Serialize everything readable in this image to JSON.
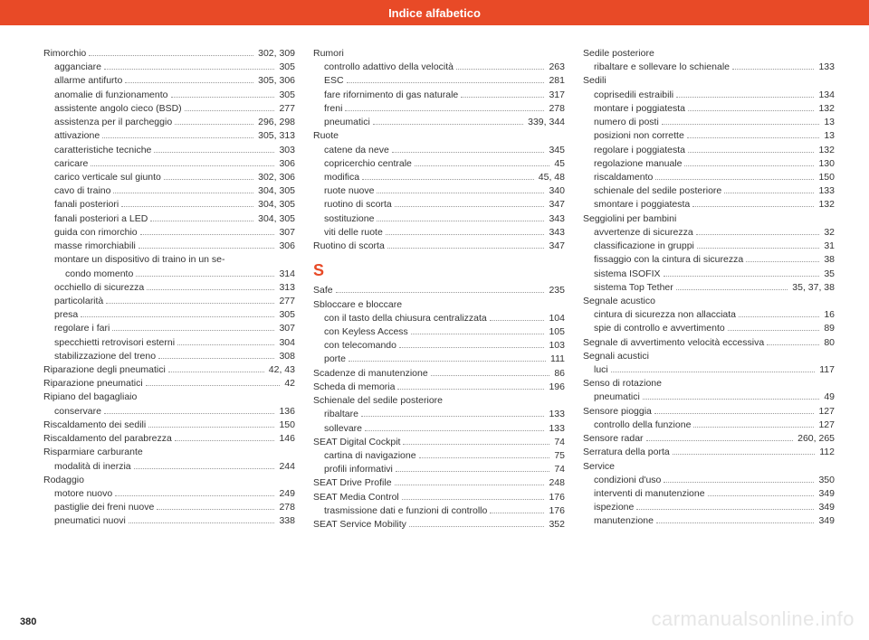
{
  "header": {
    "title": "Indice alfabetico"
  },
  "page_number": "380",
  "watermark": "carmanualsonline.info",
  "colors": {
    "accent": "#e84a27",
    "text": "#333333",
    "dots": "#999999",
    "watermark": "#e6e6e6",
    "bg": "#ffffff"
  },
  "columns": [
    {
      "items": [
        {
          "label": "Rimorchio",
          "pages": "302, 309",
          "level": 0
        },
        {
          "label": "agganciare",
          "pages": "305",
          "level": 1
        },
        {
          "label": "allarme antifurto",
          "pages": "305, 306",
          "level": 1
        },
        {
          "label": "anomalie di funzionamento",
          "pages": "305",
          "level": 1
        },
        {
          "label": "assistente angolo cieco (BSD)",
          "pages": "277",
          "level": 1
        },
        {
          "label": "assistenza per il parcheggio",
          "pages": "296, 298",
          "level": 1
        },
        {
          "label": "attivazione",
          "pages": "305, 313",
          "level": 1
        },
        {
          "label": "caratteristiche tecniche",
          "pages": "303",
          "level": 1
        },
        {
          "label": "caricare",
          "pages": "306",
          "level": 1
        },
        {
          "label": "carico verticale sul giunto",
          "pages": "302, 306",
          "level": 1
        },
        {
          "label": "cavo di traino",
          "pages": "304, 305",
          "level": 1
        },
        {
          "label": "fanali posteriori",
          "pages": "304, 305",
          "level": 1
        },
        {
          "label": "fanali posteriori a LED",
          "pages": "304, 305",
          "level": 1
        },
        {
          "label": "guida con rimorchio",
          "pages": "307",
          "level": 1
        },
        {
          "label": "masse rimorchiabili",
          "pages": "306",
          "level": 1
        },
        {
          "label": "montare un dispositivo di traino in un se-",
          "pages": "",
          "level": 1,
          "nodots": true
        },
        {
          "label": "condo momento",
          "pages": "314",
          "level": 2
        },
        {
          "label": "occhiello di sicurezza",
          "pages": "313",
          "level": 1
        },
        {
          "label": "particolarità",
          "pages": "277",
          "level": 1
        },
        {
          "label": "presa",
          "pages": "305",
          "level": 1
        },
        {
          "label": "regolare i fari",
          "pages": "307",
          "level": 1
        },
        {
          "label": "specchietti retrovisori esterni",
          "pages": "304",
          "level": 1
        },
        {
          "label": "stabilizzazione del treno",
          "pages": "308",
          "level": 1
        },
        {
          "label": "Riparazione degli pneumatici",
          "pages": "42, 43",
          "level": 0
        },
        {
          "label": "Riparazione pneumatici",
          "pages": "42",
          "level": 0
        },
        {
          "label": "Ripiano del bagagliaio",
          "pages": "",
          "level": 0,
          "nodots": true
        },
        {
          "label": "conservare",
          "pages": "136",
          "level": 1
        },
        {
          "label": "Riscaldamento dei sedili",
          "pages": "150",
          "level": 0
        },
        {
          "label": "Riscaldamento del parabrezza",
          "pages": "146",
          "level": 0
        },
        {
          "label": "Risparmiare carburante",
          "pages": "",
          "level": 0,
          "nodots": true
        },
        {
          "label": "modalità di inerzia",
          "pages": "244",
          "level": 1
        },
        {
          "label": "Rodaggio",
          "pages": "",
          "level": 0,
          "nodots": true
        },
        {
          "label": "motore nuovo",
          "pages": "249",
          "level": 1
        },
        {
          "label": "pastiglie dei freni nuove",
          "pages": "278",
          "level": 1
        },
        {
          "label": "pneumatici nuovi",
          "pages": "338",
          "level": 1
        }
      ]
    },
    {
      "items": [
        {
          "label": "Rumori",
          "pages": "",
          "level": 0,
          "nodots": true
        },
        {
          "label": "controllo adattivo della velocità",
          "pages": "263",
          "level": 1
        },
        {
          "label": "ESC",
          "pages": "281",
          "level": 1
        },
        {
          "label": "fare rifornimento di gas naturale",
          "pages": "317",
          "level": 1
        },
        {
          "label": "freni",
          "pages": "278",
          "level": 1
        },
        {
          "label": "pneumatici",
          "pages": "339, 344",
          "level": 1
        },
        {
          "label": "Ruote",
          "pages": "",
          "level": 0,
          "nodots": true
        },
        {
          "label": "catene da neve",
          "pages": "345",
          "level": 1
        },
        {
          "label": "copricerchio centrale",
          "pages": "45",
          "level": 1
        },
        {
          "label": "modifica",
          "pages": "45, 48",
          "level": 1
        },
        {
          "label": "ruote nuove",
          "pages": "340",
          "level": 1
        },
        {
          "label": "ruotino di scorta",
          "pages": "347",
          "level": 1
        },
        {
          "label": "sostituzione",
          "pages": "343",
          "level": 1
        },
        {
          "label": "viti delle ruote",
          "pages": "343",
          "level": 1
        },
        {
          "label": "Ruotino di scorta",
          "pages": "347",
          "level": 0
        },
        {
          "section": "S"
        },
        {
          "label": "Safe",
          "pages": "235",
          "level": 0
        },
        {
          "label": "Sbloccare e bloccare",
          "pages": "",
          "level": 0,
          "nodots": true
        },
        {
          "label": "con il tasto della chiusura centralizzata",
          "pages": "104",
          "level": 1
        },
        {
          "label": "con Keyless Access",
          "pages": "105",
          "level": 1
        },
        {
          "label": "con telecomando",
          "pages": "103",
          "level": 1
        },
        {
          "label": "porte",
          "pages": "111",
          "level": 1
        },
        {
          "label": "Scadenze di manutenzione",
          "pages": "86",
          "level": 0
        },
        {
          "label": "Scheda di memoria",
          "pages": "196",
          "level": 0
        },
        {
          "label": "Schienale del sedile posteriore",
          "pages": "",
          "level": 0,
          "nodots": true
        },
        {
          "label": "ribaltare",
          "pages": "133",
          "level": 1
        },
        {
          "label": "sollevare",
          "pages": "133",
          "level": 1
        },
        {
          "label": "SEAT Digital Cockpit",
          "pages": "74",
          "level": 0
        },
        {
          "label": "cartina di navigazione",
          "pages": "75",
          "level": 1
        },
        {
          "label": "profili informativi",
          "pages": "74",
          "level": 1
        },
        {
          "label": "SEAT Drive Profile",
          "pages": "248",
          "level": 0
        },
        {
          "label": "SEAT Media Control",
          "pages": "176",
          "level": 0
        },
        {
          "label": "trasmissione dati e funzioni di controllo",
          "pages": "176",
          "level": 1
        },
        {
          "label": "SEAT Service Mobility",
          "pages": "352",
          "level": 0
        }
      ]
    },
    {
      "items": [
        {
          "label": "Sedile posteriore",
          "pages": "",
          "level": 0,
          "nodots": true
        },
        {
          "label": "ribaltare e sollevare lo schienale",
          "pages": "133",
          "level": 1
        },
        {
          "label": "Sedili",
          "pages": "",
          "level": 0,
          "nodots": true
        },
        {
          "label": "coprisedili estraibili",
          "pages": "134",
          "level": 1
        },
        {
          "label": "montare i poggiatesta",
          "pages": "132",
          "level": 1
        },
        {
          "label": "numero di posti",
          "pages": "13",
          "level": 1
        },
        {
          "label": "posizioni non corrette",
          "pages": "13",
          "level": 1
        },
        {
          "label": "regolare i poggiatesta",
          "pages": "132",
          "level": 1
        },
        {
          "label": "regolazione manuale",
          "pages": "130",
          "level": 1
        },
        {
          "label": "riscaldamento",
          "pages": "150",
          "level": 1
        },
        {
          "label": "schienale del sedile posteriore",
          "pages": "133",
          "level": 1
        },
        {
          "label": "smontare i poggiatesta",
          "pages": "132",
          "level": 1
        },
        {
          "label": "Seggiolini per bambini",
          "pages": "",
          "level": 0,
          "nodots": true
        },
        {
          "label": "avvertenze di sicurezza",
          "pages": "32",
          "level": 1
        },
        {
          "label": "classificazione in gruppi",
          "pages": "31",
          "level": 1
        },
        {
          "label": "fissaggio con la cintura di sicurezza",
          "pages": "38",
          "level": 1
        },
        {
          "label": "sistema ISOFIX",
          "pages": "35",
          "level": 1
        },
        {
          "label": "sistema Top Tether",
          "pages": "35, 37, 38",
          "level": 1
        },
        {
          "label": "Segnale acustico",
          "pages": "",
          "level": 0,
          "nodots": true
        },
        {
          "label": "cintura di sicurezza non allacciata",
          "pages": "16",
          "level": 1
        },
        {
          "label": "spie di controllo e avvertimento",
          "pages": "89",
          "level": 1
        },
        {
          "label": "Segnale di avvertimento velocità eccessiva",
          "pages": "80",
          "level": 0
        },
        {
          "label": "Segnali acustici",
          "pages": "",
          "level": 0,
          "nodots": true
        },
        {
          "label": "luci",
          "pages": "117",
          "level": 1
        },
        {
          "label": "Senso di rotazione",
          "pages": "",
          "level": 0,
          "nodots": true
        },
        {
          "label": "pneumatici",
          "pages": "49",
          "level": 1
        },
        {
          "label": "Sensore pioggia",
          "pages": "127",
          "level": 0
        },
        {
          "label": "controllo della funzione",
          "pages": "127",
          "level": 1
        },
        {
          "label": "Sensore radar",
          "pages": "260, 265",
          "level": 0
        },
        {
          "label": "Serratura della porta",
          "pages": "112",
          "level": 0
        },
        {
          "label": "Service",
          "pages": "",
          "level": 0,
          "nodots": true
        },
        {
          "label": "condizioni d'uso",
          "pages": "350",
          "level": 1
        },
        {
          "label": "interventi di manutenzione",
          "pages": "349",
          "level": 1
        },
        {
          "label": "ispezione",
          "pages": "349",
          "level": 1
        },
        {
          "label": "manutenzione",
          "pages": "349",
          "level": 1
        }
      ]
    }
  ]
}
